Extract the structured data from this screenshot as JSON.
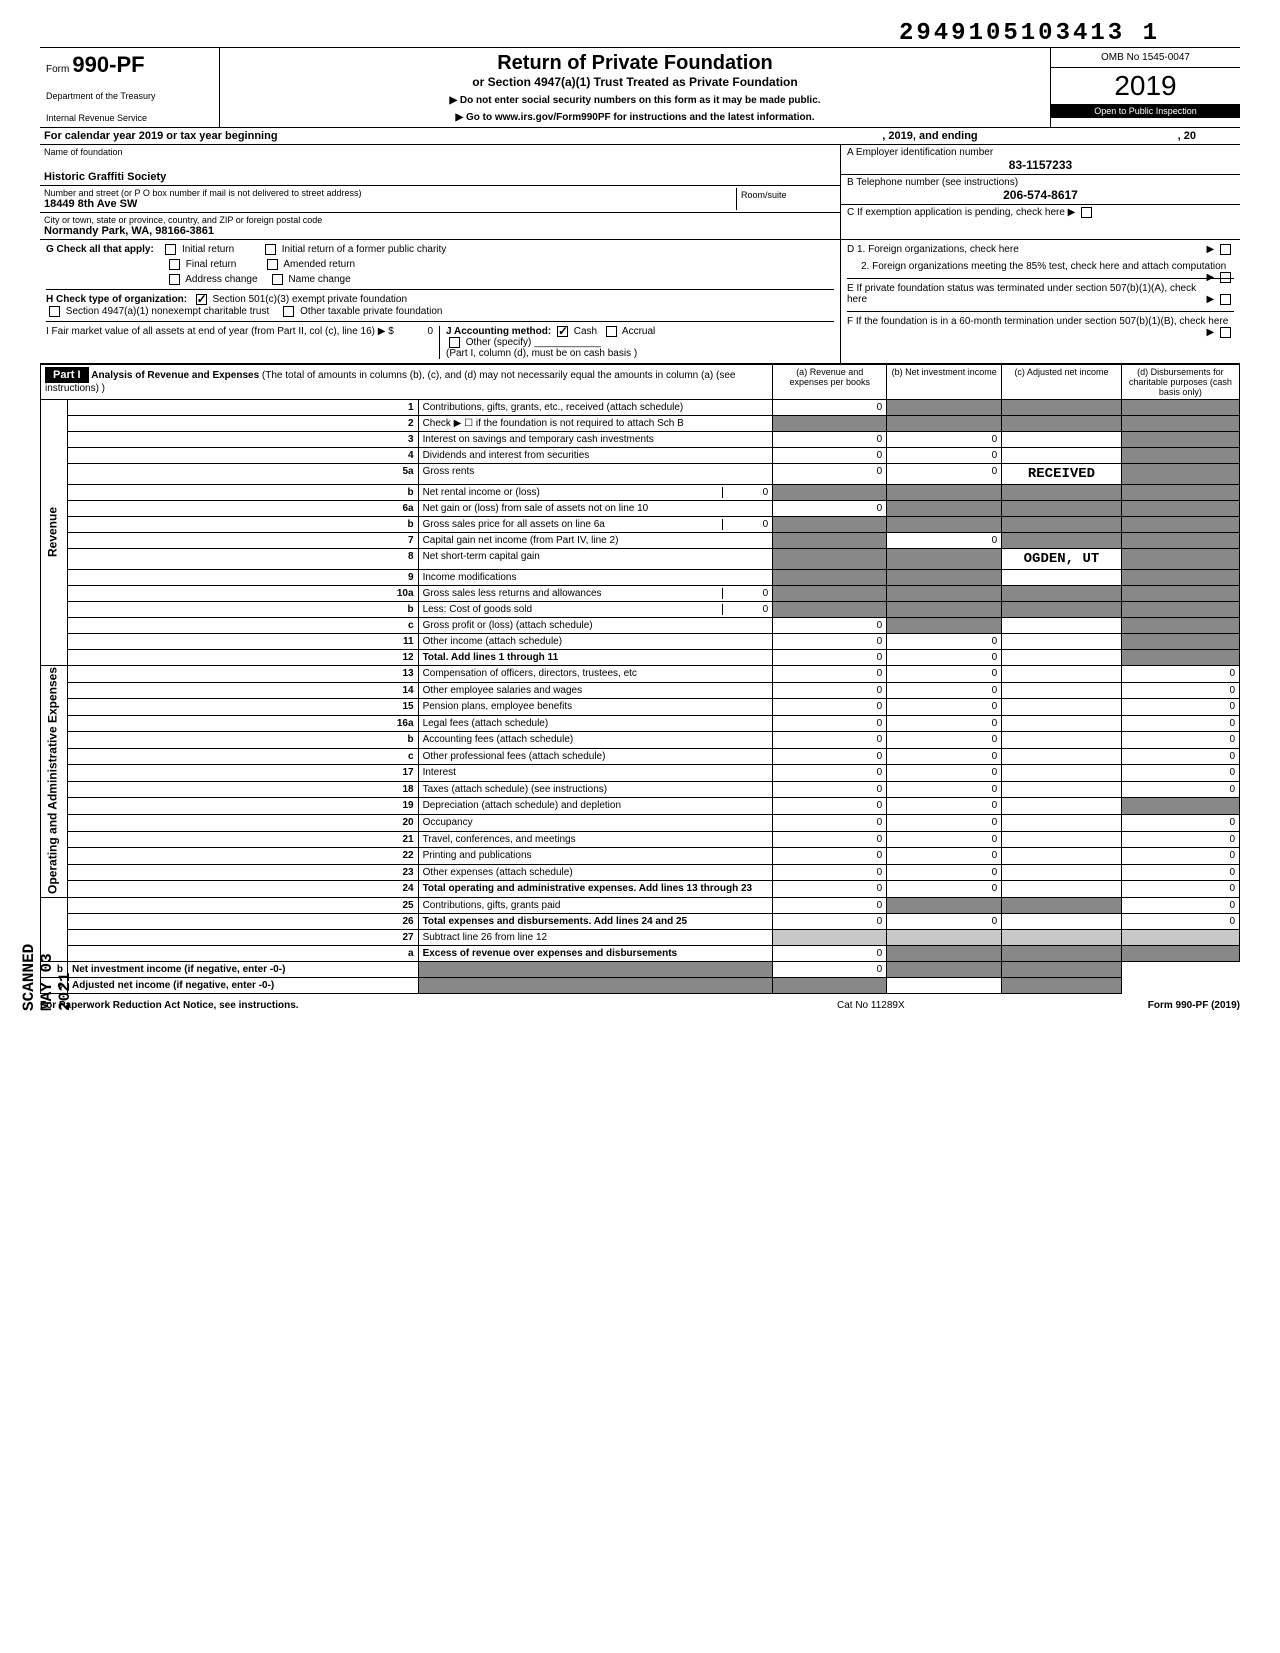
{
  "header": {
    "topNumber": "2949105103413 1",
    "formPrefix": "Form",
    "formNumber": "990-PF",
    "titleMain": "Return of Private Foundation",
    "titleSub": "or Section 4947(a)(1) Trust Treated as Private Foundation",
    "note1": "▶ Do not enter social security numbers on this form as it may be made public.",
    "note2": "▶ Go to www.irs.gov/Form990PF for instructions and the latest information.",
    "dept1": "Department of the Treasury",
    "dept2": "Internal Revenue Service",
    "omb": "OMB No 1545-0047",
    "year": "2019",
    "inspection": "Open to Public Inspection"
  },
  "calYear": {
    "text1": "For calendar year 2019 or tax year beginning",
    "text2": ", 2019, and ending",
    "text3": ", 20"
  },
  "info": {
    "nameLabel": "Name of foundation",
    "name": "Historic Graffiti Society",
    "addrLabel": "Number and street (or P O  box number if mail is not delivered to street address)",
    "addr": "18449 8th Ave SW",
    "roomLabel": "Room/suite",
    "room": "",
    "cityLabel": "City or town, state or province, country, and ZIP or foreign postal code",
    "city": "Normandy Park, WA, 98166-3861",
    "A_label": "A  Employer identification number",
    "A_value": "83-1157233",
    "B_label": "B  Telephone number (see instructions)",
    "B_value": "206-574-8617",
    "C_label": "C  If exemption application is pending, check here ▶",
    "D1": "D  1. Foreign organizations, check here",
    "D2": "2. Foreign organizations meeting the 85% test, check here and attach computation",
    "E": "E  If private foundation status was terminated under section 507(b)(1)(A), check here",
    "F": "F  If the foundation is in a 60-month termination under section 507(b)(1)(B), check here"
  },
  "sectionG": {
    "label": "G  Check all that apply:",
    "initial": "Initial return",
    "initialFormer": "Initial return of a former public charity",
    "final": "Final return",
    "amended": "Amended return",
    "addressChange": "Address change",
    "nameChange": "Name change"
  },
  "sectionH": {
    "label": "H  Check type of organization:",
    "opt1": "Section 501(c)(3) exempt private foundation",
    "opt2": "Section 4947(a)(1) nonexempt charitable trust",
    "opt3": "Other taxable private foundation"
  },
  "sectionI": {
    "label": "I  Fair market value of all assets at end of year (from Part II, col (c), line 16) ▶ $",
    "value": "0"
  },
  "sectionJ": {
    "label": "J  Accounting method:",
    "cash": "Cash",
    "accrual": "Accrual",
    "other": "Other (specify)",
    "note": "(Part I, column (d), must be on cash basis )"
  },
  "part1": {
    "header": "Part I",
    "title": "Analysis of Revenue and Expenses",
    "titleNote": "(The total of amounts in columns (b), (c), and (d) may not necessarily equal the amounts in column (a) (see instructions) )",
    "colA": "(a) Revenue and expenses per books",
    "colB": "(b) Net investment income",
    "colC": "(c) Adjusted net income",
    "colD": "(d) Disbursements for charitable purposes (cash basis only)"
  },
  "sideLabels": {
    "revenue": "Revenue",
    "expenses": "Operating and Administrative Expenses"
  },
  "rows": [
    {
      "n": "1",
      "label": "Contributions, gifts, grants, etc., received (attach schedule)",
      "a": "0",
      "b": "",
      "c": "",
      "d": "",
      "bShade": "dark",
      "cShade": "dark",
      "dShade": "dark"
    },
    {
      "n": "2",
      "label": "Check ▶ ☐ if the foundation is not required to attach Sch B",
      "a": "",
      "b": "",
      "c": "",
      "d": "",
      "aShade": "dark",
      "bShade": "dark",
      "cShade": "dark",
      "dShade": "dark"
    },
    {
      "n": "3",
      "label": "Interest on savings and temporary cash investments",
      "a": "0",
      "b": "0",
      "c": "",
      "d": "",
      "dShade": "dark"
    },
    {
      "n": "4",
      "label": "Dividends and interest from securities",
      "a": "0",
      "b": "0",
      "c": "",
      "d": "",
      "dShade": "dark"
    },
    {
      "n": "5a",
      "label": "Gross rents",
      "a": "0",
      "b": "0",
      "c": "",
      "d": "",
      "cText": "RECEIVED",
      "dShade": "dark"
    },
    {
      "n": "b",
      "label": "Net rental income or (loss)",
      "suffix": "0",
      "a": "",
      "b": "",
      "c": "",
      "d": "",
      "aShade": "dark",
      "bShade": "dark",
      "cShade": "dark",
      "dShade": "dark"
    },
    {
      "n": "6a",
      "label": "Net gain or (loss) from sale of assets not on line 10",
      "a": "0",
      "b": "",
      "c": "",
      "d": "",
      "bShade": "dark",
      "cShade": "dark",
      "dShade": "dark"
    },
    {
      "n": "b",
      "label": "Gross sales price for all assets on line 6a",
      "suffix": "0",
      "a": "",
      "b": "",
      "c": "",
      "d": "",
      "aShade": "dark",
      "bShade": "dark",
      "cShade": "dark",
      "dShade": "dark"
    },
    {
      "n": "7",
      "label": "Capital gain net income (from Part IV, line 2)",
      "a": "",
      "b": "0",
      "c": "",
      "d": "",
      "aShade": "dark",
      "cShade": "dark",
      "dShade": "dark"
    },
    {
      "n": "8",
      "label": "Net short-term capital gain",
      "a": "",
      "b": "",
      "c": "",
      "d": "",
      "aShade": "dark",
      "bShade": "dark",
      "cText": "OGDEN, UT",
      "dShade": "dark"
    },
    {
      "n": "9",
      "label": "Income modifications",
      "a": "",
      "b": "",
      "c": "",
      "d": "",
      "aShade": "dark",
      "bShade": "dark",
      "dShade": "dark"
    },
    {
      "n": "10a",
      "label": "Gross sales less returns and allowances",
      "suffix": "0",
      "a": "",
      "b": "",
      "c": "",
      "d": "",
      "aShade": "dark",
      "bShade": "dark",
      "cShade": "dark",
      "dShade": "dark"
    },
    {
      "n": "b",
      "label": "Less: Cost of goods sold",
      "suffix": "0",
      "a": "",
      "b": "",
      "c": "",
      "d": "",
      "aShade": "dark",
      "bShade": "dark",
      "cShade": "dark",
      "dShade": "dark"
    },
    {
      "n": "c",
      "label": "Gross profit or (loss) (attach schedule)",
      "a": "0",
      "b": "",
      "c": "",
      "d": "",
      "bShade": "dark",
      "dShade": "dark"
    },
    {
      "n": "11",
      "label": "Other income (attach schedule)",
      "a": "0",
      "b": "0",
      "c": "",
      "d": "",
      "dShade": "dark"
    },
    {
      "n": "12",
      "label": "Total. Add lines 1 through 11",
      "bold": true,
      "a": "0",
      "b": "0",
      "c": "",
      "d": "",
      "dShade": "dark"
    },
    {
      "n": "13",
      "label": "Compensation of officers, directors, trustees, etc",
      "a": "0",
      "b": "0",
      "c": "",
      "d": "0"
    },
    {
      "n": "14",
      "label": "Other employee salaries and wages",
      "a": "0",
      "b": "0",
      "c": "",
      "d": "0"
    },
    {
      "n": "15",
      "label": "Pension plans, employee benefits",
      "a": "0",
      "b": "0",
      "c": "",
      "d": "0"
    },
    {
      "n": "16a",
      "label": "Legal fees (attach schedule)",
      "a": "0",
      "b": "0",
      "c": "",
      "d": "0"
    },
    {
      "n": "b",
      "label": "Accounting fees (attach schedule)",
      "a": "0",
      "b": "0",
      "c": "",
      "d": "0"
    },
    {
      "n": "c",
      "label": "Other professional fees (attach schedule)",
      "a": "0",
      "b": "0",
      "c": "",
      "d": "0"
    },
    {
      "n": "17",
      "label": "Interest",
      "a": "0",
      "b": "0",
      "c": "",
      "d": "0"
    },
    {
      "n": "18",
      "label": "Taxes (attach schedule) (see instructions)",
      "a": "0",
      "b": "0",
      "c": "",
      "d": "0"
    },
    {
      "n": "19",
      "label": "Depreciation (attach schedule) and depletion",
      "a": "0",
      "b": "0",
      "c": "",
      "d": "",
      "dShade": "dark"
    },
    {
      "n": "20",
      "label": "Occupancy",
      "a": "0",
      "b": "0",
      "c": "",
      "d": "0"
    },
    {
      "n": "21",
      "label": "Travel, conferences, and meetings",
      "a": "0",
      "b": "0",
      "c": "",
      "d": "0"
    },
    {
      "n": "22",
      "label": "Printing and publications",
      "a": "0",
      "b": "0",
      "c": "",
      "d": "0"
    },
    {
      "n": "23",
      "label": "Other expenses (attach schedule)",
      "a": "0",
      "b": "0",
      "c": "",
      "d": "0"
    },
    {
      "n": "24",
      "label": "Total operating and administrative expenses. Add lines 13 through 23",
      "bold": true,
      "a": "0",
      "b": "0",
      "c": "",
      "d": "0"
    },
    {
      "n": "25",
      "label": "Contributions, gifts, grants paid",
      "a": "0",
      "b": "",
      "c": "",
      "d": "0",
      "bShade": "dark",
      "cShade": "dark"
    },
    {
      "n": "26",
      "label": "Total expenses and disbursements. Add lines 24 and 25",
      "bold": true,
      "a": "0",
      "b": "0",
      "c": "",
      "d": "0"
    },
    {
      "n": "27",
      "label": "Subtract line 26 from line 12",
      "a": "",
      "b": "",
      "c": "",
      "d": "",
      "aShade": "shaded",
      "bShade": "shaded",
      "cShade": "shaded",
      "dShade": "shaded"
    },
    {
      "n": "a",
      "label": "Excess of revenue over expenses and disbursements",
      "bold": true,
      "a": "0",
      "b": "",
      "c": "",
      "d": "",
      "bShade": "dark",
      "cShade": "dark",
      "dShade": "dark"
    },
    {
      "n": "b",
      "label": "Net investment income (if negative, enter -0-)",
      "bold": true,
      "a": "",
      "b": "0",
      "c": "",
      "d": "",
      "aShade": "dark",
      "cShade": "dark",
      "dShade": "dark"
    },
    {
      "n": "c",
      "label": "Adjusted net income (if negative, enter -0-)",
      "bold": true,
      "a": "",
      "b": "",
      "c": "",
      "d": "",
      "aShade": "dark",
      "bShade": "dark",
      "dShade": "dark"
    }
  ],
  "stamps": {
    "scanned": "SCANNED MAY 03 2021"
  },
  "footer": {
    "left": "For Paperwork Reduction Act Notice, see instructions.",
    "mid": "Cat No 11289X",
    "right": "Form 990-PF (2019)"
  }
}
